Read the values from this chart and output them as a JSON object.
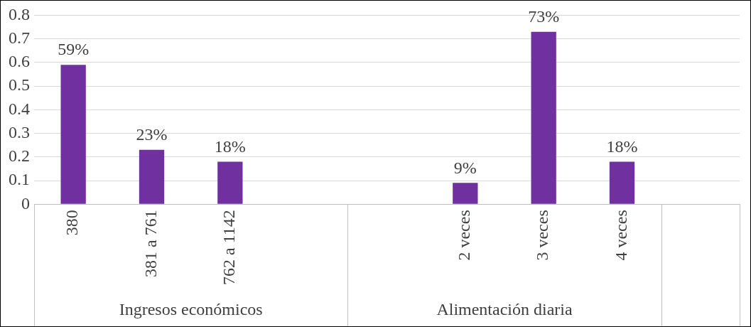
{
  "chart_data": {
    "type": "bar",
    "categories": [
      "380",
      "381 a 761",
      "762 a 1142",
      null,
      null,
      "2 veces",
      "3 veces",
      "4 veces",
      null
    ],
    "values": [
      0.59,
      0.23,
      0.18,
      null,
      null,
      0.09,
      0.73,
      0.18,
      null
    ],
    "value_labels": [
      "59%",
      "23%",
      "18%",
      null,
      null,
      "9%",
      "73%",
      "18%",
      null
    ],
    "color": "#7030a0",
    "ylim": [
      0,
      0.8
    ],
    "yticks": [
      0,
      0.1,
      0.2,
      0.3,
      0.4,
      0.5,
      0.6,
      0.7,
      0.8
    ],
    "grid": "y",
    "annotations": [
      "Ingresos económicos",
      "Alimentación diaria"
    ]
  }
}
